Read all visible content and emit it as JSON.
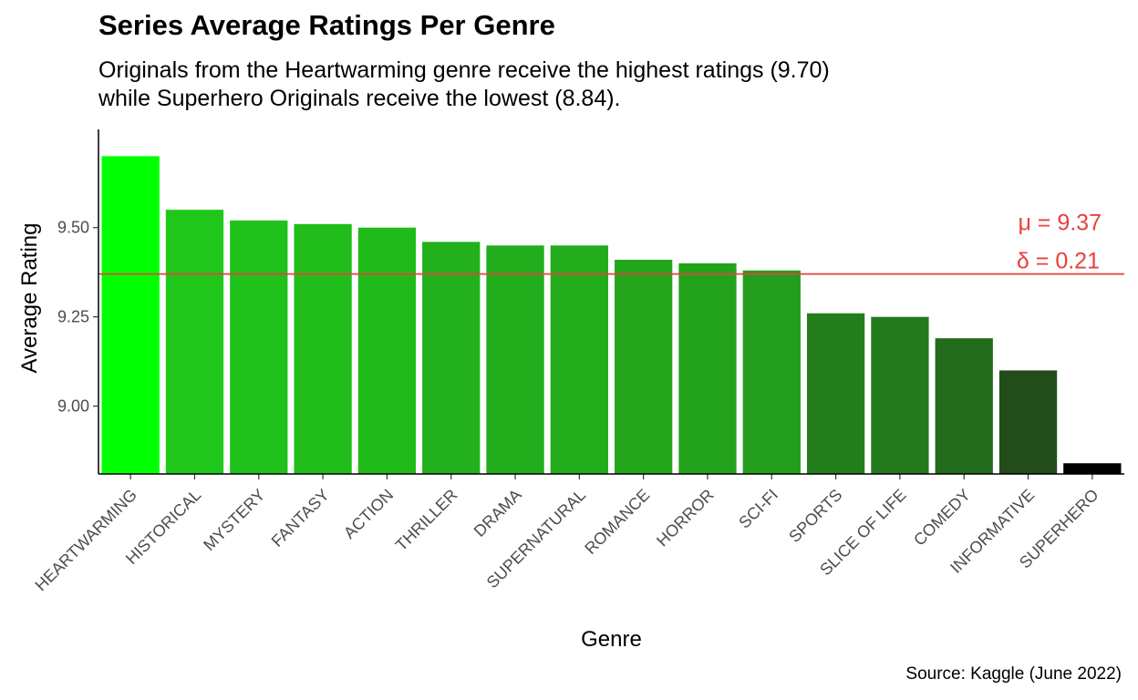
{
  "chart_data": {
    "type": "bar",
    "title": "Series Average Ratings Per Genre",
    "subtitle_lines": [
      "Originals from the Heartwarming genre receive the highest ratings (9.70)",
      "while Superhero Originals receive the lowest (8.84)."
    ],
    "caption": "Source: Kaggle (June 2022)",
    "xlabel": "Genre",
    "ylabel": "Average Rating",
    "categories": [
      "HEARTWARMING",
      "HISTORICAL",
      "MYSTERY",
      "FANTASY",
      "ACTION",
      "THRILLER",
      "DRAMA",
      "SUPERNATURAL",
      "ROMANCE",
      "HORROR",
      "SCI-FI",
      "SPORTS",
      "SLICE OF LIFE",
      "COMEDY",
      "INFORMATIVE",
      "SUPERHERO"
    ],
    "values": [
      9.7,
      9.55,
      9.52,
      9.51,
      9.5,
      9.46,
      9.45,
      9.45,
      9.41,
      9.4,
      9.38,
      9.26,
      9.25,
      9.19,
      9.1,
      8.84
    ],
    "bar_colors": [
      "#00ff00",
      "#1fc71a",
      "#20c11b",
      "#21be1b",
      "#21ba1b",
      "#22b01c",
      "#22ad1c",
      "#22ac1c",
      "#23a61c",
      "#23a31c",
      "#249e1d",
      "#237d1d",
      "#237a1d",
      "#236b1d",
      "#224d1a",
      "#000000"
    ],
    "ylim": [
      8.81,
      9.775
    ],
    "yticks": [
      9.0,
      9.25,
      9.5
    ],
    "ytick_labels": [
      "9.00",
      "9.25",
      "9.50"
    ],
    "grid": false,
    "legend": "none",
    "reference_line": {
      "value": 9.37,
      "color": "#e8413c",
      "labels": [
        "μ = 9.37",
        "δ = 0.21"
      ]
    }
  }
}
